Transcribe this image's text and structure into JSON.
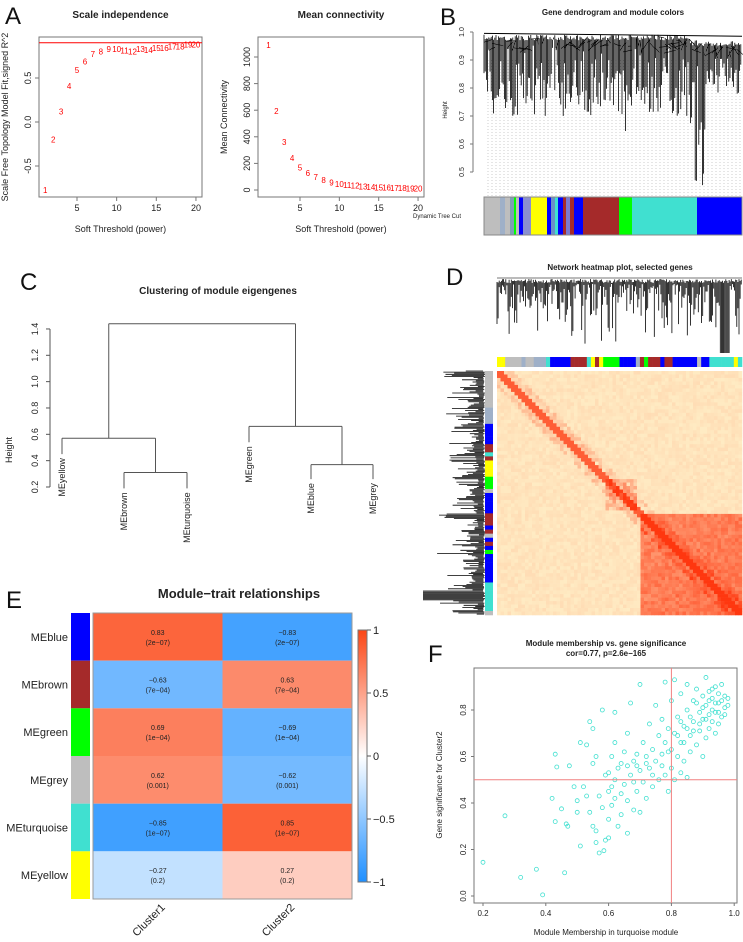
{
  "panel_labels": [
    "A",
    "B",
    "C",
    "D",
    "E",
    "F"
  ],
  "chart_data": [
    {
      "id": "A1",
      "type": "scatter",
      "title": "Scale independence",
      "xlabel": "Soft Threshold (power)",
      "ylabel": "Scale Free Topology Model Fit,signed R^2",
      "x": [
        1,
        2,
        3,
        4,
        5,
        6,
        7,
        8,
        9,
        10,
        11,
        12,
        13,
        14,
        15,
        16,
        17,
        18,
        19,
        20
      ],
      "y": [
        -0.77,
        -0.2,
        0.12,
        0.41,
        0.59,
        0.69,
        0.77,
        0.8,
        0.83,
        0.83,
        0.81,
        0.8,
        0.83,
        0.82,
        0.84,
        0.84,
        0.86,
        0.86,
        0.88,
        0.88
      ],
      "hline": 0.9,
      "xticks": [
        "5",
        "10",
        "15",
        "20"
      ],
      "yticks": [
        "-0.5",
        "0.0",
        "0.5"
      ],
      "point_color": "#ff0000"
    },
    {
      "id": "A2",
      "type": "scatter",
      "title": "Mean connectivity",
      "xlabel": "Soft Threshold (power)",
      "ylabel": "Mean Connectivity",
      "x": [
        1,
        2,
        3,
        4,
        5,
        6,
        7,
        8,
        9,
        10,
        11,
        12,
        13,
        14,
        15,
        16,
        17,
        18,
        19,
        20
      ],
      "y": [
        1090,
        595,
        360,
        240,
        168,
        128,
        98,
        75,
        58,
        46,
        38,
        32,
        27,
        23,
        20,
        18,
        16,
        14,
        13,
        12
      ],
      "xticks": [
        "5",
        "10",
        "15",
        "20"
      ],
      "yticks": [
        "0",
        "200",
        "400",
        "600",
        "800",
        "1000"
      ],
      "point_color": "#ff0000"
    },
    {
      "id": "B",
      "type": "dendrogram",
      "title": "Gene dendrogram and module colors",
      "ylabel": "Height",
      "yticks": [
        "0.5",
        "0.6",
        "0.7",
        "0.8",
        "0.9",
        "1.0"
      ],
      "colorbar_label": "Dynamic Tree Cut",
      "module_colors": {
        "grey": "#bebebe",
        "yellow": "#ffff00",
        "brown": "#a52a2a",
        "green": "#00ff00",
        "turquoise": "#40e0d0",
        "blue": "#0000ff"
      }
    },
    {
      "id": "C",
      "type": "dendrogram",
      "title": "Clustering of module eigengenes",
      "ylabel": "Height",
      "yticks": [
        "0.2",
        "0.4",
        "0.6",
        "0.8",
        "1.0",
        "1.2",
        "1.4"
      ],
      "leaves": [
        "MEyellow",
        "MEbrown",
        "MEturquoise",
        "MEgreen",
        "MEblue",
        "MEgrey"
      ],
      "leaf_heights": [
        0.45,
        0.19,
        0.19,
        0.54,
        0.26,
        0.26
      ],
      "merges": [
        {
          "left": "MEbrown",
          "right": "MEturquoise",
          "height": 0.31
        },
        {
          "left": "MEyellow",
          "right": "(MEbrown,MEturquoise)",
          "height": 0.57
        },
        {
          "left": "MEblue",
          "right": "MEgrey",
          "height": 0.37
        },
        {
          "left": "MEgreen",
          "right": "(MEblue,MEgrey)",
          "height": 0.66
        },
        {
          "left": "cluster1",
          "right": "cluster2",
          "height": 1.44
        }
      ]
    },
    {
      "id": "D",
      "type": "heatmap",
      "title": "Network heatmap plot, selected genes"
    },
    {
      "id": "E",
      "type": "heatmap",
      "title": "Module−trait relationships",
      "rows": [
        "MEblue",
        "MEbrown",
        "MEgreen",
        "MEgrey",
        "MEturquoise",
        "MEyellow"
      ],
      "row_colors": [
        "#0000ff",
        "#a52a2a",
        "#00ff00",
        "#bebebe",
        "#40e0d0",
        "#ffff00"
      ],
      "columns": [
        "Cluster1",
        "Cluster2"
      ],
      "values": [
        [
          0.83,
          -0.83
        ],
        [
          -0.63,
          0.63
        ],
        [
          0.69,
          -0.69
        ],
        [
          0.62,
          -0.62
        ],
        [
          -0.85,
          0.85
        ],
        [
          -0.27,
          0.27
        ]
      ],
      "value_labels": [
        [
          "0.83",
          "−0.83"
        ],
        [
          "−0.63",
          "0.63"
        ],
        [
          "0.69",
          "−0.69"
        ],
        [
          "0.62",
          "−0.62"
        ],
        [
          "−0.85",
          "0.85"
        ],
        [
          "−0.27",
          "0.27"
        ]
      ],
      "pvalues": [
        [
          "(2e−07)",
          "(2e−07)"
        ],
        [
          "(7e−04)",
          "(7e−04)"
        ],
        [
          "(1e−04)",
          "(1e−04)"
        ],
        [
          "(0.001)",
          "(0.001)"
        ],
        [
          "(1e−07)",
          "(1e−07)"
        ],
        [
          "(0.2)",
          "(0.2)"
        ]
      ],
      "legend_ticks": [
        "1",
        "0.5",
        "0",
        "−0.5",
        "−1"
      ],
      "scale": {
        "low": "#1e8fff",
        "mid": "#ffffff",
        "high": "#fb4514"
      }
    },
    {
      "id": "F",
      "type": "scatter",
      "title": "Module membership vs. gene significance",
      "subtitle": "cor=0.77, p=2.6e−165",
      "xlabel": "Module Membership in turquoise module",
      "ylabel": "Gene significance for Cluster2",
      "xticks": [
        "0.2",
        "0.4",
        "0.6",
        "0.8",
        "1.0"
      ],
      "yticks": [
        "0.0",
        "0.2",
        "0.4",
        "0.6",
        "0.8"
      ],
      "vline": 0.8,
      "hline": 0.5,
      "point_color": "#40e0d0",
      "points": [
        [
          0.2,
          0.145
        ],
        [
          0.27,
          0.345
        ],
        [
          0.32,
          0.08
        ],
        [
          0.37,
          0.115
        ],
        [
          0.39,
          0.005
        ],
        [
          0.46,
          0.1
        ],
        [
          0.43,
          0.61
        ],
        [
          0.435,
          0.555
        ],
        [
          0.475,
          0.56
        ],
        [
          0.42,
          0.42
        ],
        [
          0.43,
          0.32
        ],
        [
          0.45,
          0.375
        ],
        [
          0.465,
          0.31
        ],
        [
          0.47,
          0.3
        ],
        [
          0.49,
          0.47
        ],
        [
          0.5,
          0.36
        ],
        [
          0.5,
          0.41
        ],
        [
          0.51,
          0.215
        ],
        [
          0.51,
          0.66
        ],
        [
          0.53,
          0.65
        ],
        [
          0.54,
          0.75
        ],
        [
          0.55,
          0.72
        ],
        [
          0.52,
          0.47
        ],
        [
          0.53,
          0.43
        ],
        [
          0.54,
          0.36
        ],
        [
          0.55,
          0.3
        ],
        [
          0.56,
          0.23
        ],
        [
          0.56,
          0.28
        ],
        [
          0.57,
          0.185
        ],
        [
          0.58,
          0.8
        ],
        [
          0.585,
          0.195
        ],
        [
          0.59,
          0.24
        ],
        [
          0.6,
          0.25
        ],
        [
          0.6,
          0.33
        ],
        [
          0.6,
          0.45
        ],
        [
          0.6,
          0.53
        ],
        [
          0.61,
          0.6
        ],
        [
          0.61,
          0.39
        ],
        [
          0.62,
          0.79
        ],
        [
          0.62,
          0.5
        ],
        [
          0.62,
          0.66
        ],
        [
          0.63,
          0.3
        ],
        [
          0.63,
          0.55
        ],
        [
          0.64,
          0.44
        ],
        [
          0.64,
          0.35
        ],
        [
          0.65,
          0.48
        ],
        [
          0.65,
          0.62
        ],
        [
          0.66,
          0.27
        ],
        [
          0.66,
          0.41
        ],
        [
          0.66,
          0.7
        ],
        [
          0.67,
          0.52
        ],
        [
          0.67,
          0.83
        ],
        [
          0.68,
          0.58
        ],
        [
          0.68,
          0.37
        ],
        [
          0.69,
          0.61
        ],
        [
          0.69,
          0.45
        ],
        [
          0.7,
          0.91
        ],
        [
          0.7,
          0.54
        ],
        [
          0.7,
          0.36
        ],
        [
          0.71,
          0.66
        ],
        [
          0.71,
          0.49
        ],
        [
          0.72,
          0.6
        ],
        [
          0.72,
          0.42
        ],
        [
          0.73,
          0.74
        ],
        [
          0.73,
          0.55
        ],
        [
          0.74,
          0.63
        ],
        [
          0.74,
          0.47
        ],
        [
          0.75,
          0.82
        ],
        [
          0.75,
          0.58
        ],
        [
          0.76,
          0.69
        ],
        [
          0.76,
          0.5
        ],
        [
          0.77,
          0.76
        ],
        [
          0.77,
          0.61
        ],
        [
          0.78,
          0.92
        ],
        [
          0.78,
          0.66
        ],
        [
          0.78,
          0.52
        ],
        [
          0.79,
          0.45
        ],
        [
          0.79,
          0.72
        ],
        [
          0.8,
          0.84
        ],
        [
          0.8,
          0.63
        ],
        [
          0.8,
          0.55
        ],
        [
          0.81,
          0.93
        ],
        [
          0.81,
          0.7
        ],
        [
          0.81,
          0.5
        ],
        [
          0.82,
          0.77
        ],
        [
          0.82,
          0.6
        ],
        [
          0.83,
          0.87
        ],
        [
          0.83,
          0.66
        ],
        [
          0.83,
          0.53
        ],
        [
          0.84,
          0.73
        ],
        [
          0.84,
          0.58
        ],
        [
          0.85,
          0.91
        ],
        [
          0.85,
          0.8
        ],
        [
          0.85,
          0.51
        ],
        [
          0.86,
          0.69
        ],
        [
          0.86,
          0.62
        ],
        [
          0.87,
          0.84
        ],
        [
          0.87,
          0.75
        ],
        [
          0.88,
          0.65
        ],
        [
          0.88,
          0.89
        ],
        [
          0.89,
          0.79
        ],
        [
          0.89,
          0.71
        ],
        [
          0.9,
          0.86
        ],
        [
          0.9,
          0.6
        ],
        [
          0.9,
          0.76
        ],
        [
          0.91,
          0.94
        ],
        [
          0.91,
          0.82
        ],
        [
          0.91,
          0.68
        ],
        [
          0.92,
          0.88
        ],
        [
          0.92,
          0.78
        ],
        [
          0.92,
          0.72
        ],
        [
          0.93,
          0.85
        ],
        [
          0.93,
          0.8
        ],
        [
          0.93,
          0.75
        ],
        [
          0.94,
          0.9
        ],
        [
          0.94,
          0.83
        ],
        [
          0.94,
          0.7
        ],
        [
          0.95,
          0.87
        ],
        [
          0.95,
          0.79
        ],
        [
          0.95,
          0.74
        ],
        [
          0.96,
          0.84
        ],
        [
          0.96,
          0.91
        ],
        [
          0.96,
          0.77
        ],
        [
          0.97,
          0.86
        ],
        [
          0.97,
          0.81
        ],
        [
          0.98,
          0.82
        ],
        [
          0.98,
          0.85
        ],
        [
          0.88,
          0.83
        ],
        [
          0.9,
          0.81
        ],
        [
          0.92,
          0.84
        ],
        [
          0.94,
          0.79
        ],
        [
          0.89,
          0.74
        ],
        [
          0.86,
          0.77
        ],
        [
          0.84,
          0.66
        ],
        [
          0.82,
          0.69
        ],
        [
          0.87,
          0.71
        ],
        [
          0.91,
          0.76
        ],
        [
          0.93,
          0.89
        ],
        [
          0.95,
          0.83
        ],
        [
          0.97,
          0.78
        ],
        [
          0.85,
          0.72
        ],
        [
          0.83,
          0.75
        ],
        [
          0.79,
          0.62
        ],
        [
          0.77,
          0.56
        ],
        [
          0.74,
          0.52
        ],
        [
          0.72,
          0.57
        ],
        [
          0.69,
          0.56
        ],
        [
          0.68,
          0.49
        ],
        [
          0.66,
          0.56
        ],
        [
          0.64,
          0.57
        ],
        [
          0.62,
          0.42
        ],
        [
          0.61,
          0.47
        ],
        [
          0.59,
          0.52
        ],
        [
          0.58,
          0.38
        ],
        [
          0.57,
          0.43
        ],
        [
          0.56,
          0.6
        ],
        [
          0.55,
          0.57
        ]
      ]
    }
  ]
}
